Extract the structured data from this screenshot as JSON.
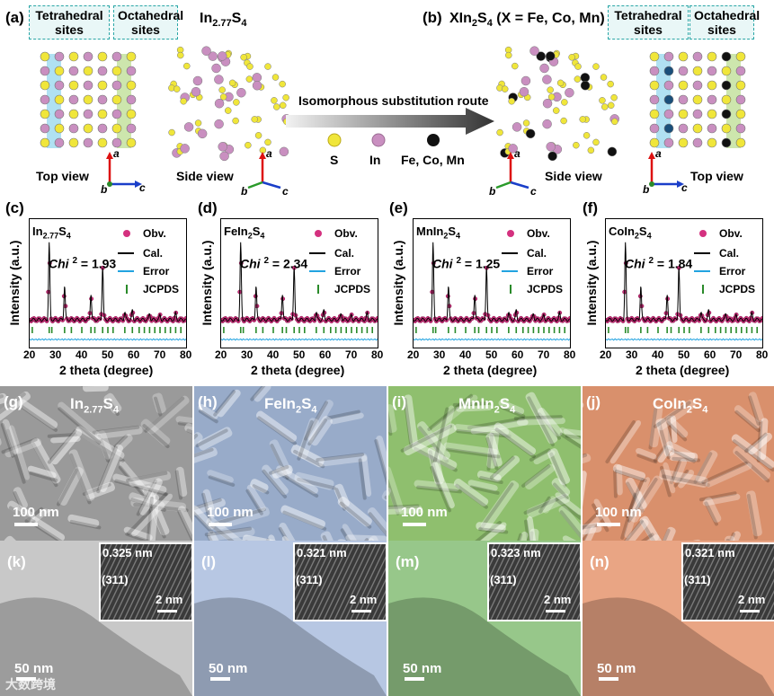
{
  "panel_a": {
    "label": "(a)",
    "box_tetra": "Tetrahedral sites",
    "box_octa": "Octahedral sites",
    "formula": "In2.77S4",
    "top_view": "Top view",
    "side_view": "Side view"
  },
  "panel_b": {
    "label": "(b)",
    "formula": "XIn2S4 (X = Fe, Co, Mn)",
    "box_tetra": "Tetrahedral sites",
    "box_octa": "Octahedral sites",
    "side_view": "Side view",
    "top_view": "Top view"
  },
  "route": "Isomorphous substitution route",
  "atom_legend": [
    {
      "label": "S",
      "color": "#f0e63a"
    },
    {
      "label": "In",
      "color": "#c98fc0"
    },
    {
      "label": "Fe, Co, Mn",
      "color": "#111111"
    }
  ],
  "axes_labels": {
    "a": "a",
    "b": "b",
    "c": "c"
  },
  "xrd_common": {
    "ylabel": "Intensity (a.u.)",
    "xlabel": "2 theta (degree)",
    "xticks": [
      "20",
      "30",
      "40",
      "50",
      "60",
      "70",
      "80"
    ],
    "legend": [
      "Obv.",
      "Cal.",
      "Error",
      "JCPDS"
    ],
    "chi_label": "Chi"
  },
  "chart_data": [
    {
      "type": "line",
      "panel": "(c)",
      "sample": "In2.77S4",
      "chi2": "1.93",
      "xlim": [
        20,
        80
      ],
      "series": [
        {
          "name": "Obv."
        },
        {
          "name": "Cal."
        },
        {
          "name": "Error"
        },
        {
          "name": "JCPDS"
        }
      ]
    },
    {
      "type": "line",
      "panel": "(d)",
      "sample": "FeIn2S4",
      "chi2": "2.34",
      "xlim": [
        20,
        80
      ],
      "series": [
        {
          "name": "Obv."
        },
        {
          "name": "Cal."
        },
        {
          "name": "Error"
        },
        {
          "name": "JCPDS"
        }
      ]
    },
    {
      "type": "line",
      "panel": "(e)",
      "sample": "MnIn2S4",
      "chi2": "1.25",
      "xlim": [
        20,
        80
      ],
      "series": [
        {
          "name": "Obv."
        },
        {
          "name": "Cal."
        },
        {
          "name": "Error"
        },
        {
          "name": "JCPDS"
        }
      ]
    },
    {
      "type": "line",
      "panel": "(f)",
      "sample": "CoIn2S4",
      "chi2": "1.84",
      "xlim": [
        20,
        80
      ],
      "series": [
        {
          "name": "Obv."
        },
        {
          "name": "Cal."
        },
        {
          "name": "Error"
        },
        {
          "name": "JCPDS"
        }
      ]
    }
  ],
  "sem": [
    {
      "label": "(g)",
      "title": "In2.77S4",
      "scale": "100 nm",
      "color": "#9a9a9a"
    },
    {
      "label": "(h)",
      "title": "FeIn2S4",
      "scale": "100 nm",
      "color": "#98abc9"
    },
    {
      "label": "(i)",
      "title": "MnIn2S4",
      "scale": "100 nm",
      "color": "#8fbf6e"
    },
    {
      "label": "(j)",
      "title": "CoIn2S4",
      "scale": "100 nm",
      "color": "#d9906c"
    }
  ],
  "tem": [
    {
      "label": "(k)",
      "scale": "50 nm",
      "d": "0.325 nm",
      "plane": "(311)",
      "inset_scale": "2 nm",
      "color": "#c8c8c8"
    },
    {
      "label": "(l)",
      "scale": "50 nm",
      "d": "0.321 nm",
      "plane": "(311)",
      "inset_scale": "2 nm",
      "color": "#b7c7e3"
    },
    {
      "label": "(m)",
      "scale": "50 nm",
      "d": "0.323 nm",
      "plane": "(311)",
      "inset_scale": "2 nm",
      "color": "#97c78a"
    },
    {
      "label": "(n)",
      "scale": "50 nm",
      "d": "0.321 nm",
      "plane": "(311)",
      "inset_scale": "2 nm",
      "color": "#e9a584"
    }
  ],
  "watermark": "大数跨境"
}
